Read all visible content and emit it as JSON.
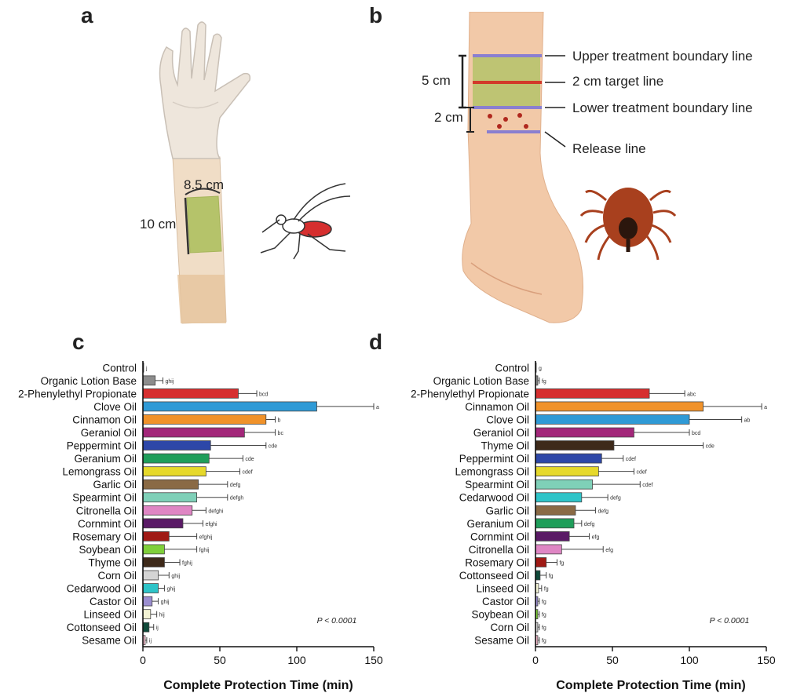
{
  "panels": {
    "a": "a",
    "b": "b",
    "c": "c",
    "d": "d"
  },
  "panel_a": {
    "width_label": "8.5 cm",
    "height_label": "10 cm"
  },
  "panel_b": {
    "upper_line": "Upper treatment boundary line",
    "target_line": "2 cm target line",
    "lower_line": "Lower treatment boundary line",
    "release_line": "Release line",
    "dist_5": "5 cm",
    "dist_2": "2 cm"
  },
  "colors": {
    "treated_area": "#b5c36a",
    "boundary_line": "#8a7fd0",
    "target_line": "#d23a2a",
    "tick": "#8b3a1a"
  },
  "chart_data": [
    {
      "type": "bar",
      "orientation": "horizontal",
      "xlabel": "Complete Protection Time (min)",
      "xlim": [
        0,
        150
      ],
      "xticks": [
        0,
        50,
        100,
        150
      ],
      "annotation": "P < 0.0001",
      "bars": [
        {
          "label": "Control",
          "value": 0.5,
          "err": 0,
          "letters": "j",
          "color": "#222222"
        },
        {
          "label": "Organic Lotion Base",
          "value": 8,
          "err": 5,
          "letters": "ghij",
          "color": "#8c8c8c"
        },
        {
          "label": "2-Phenylethyl Propionate",
          "value": 62,
          "err": 12,
          "letters": "bcd",
          "color": "#d62f2f"
        },
        {
          "label": "Clove Oil",
          "value": 113,
          "err": 37,
          "letters": "a",
          "color": "#2f9ad6"
        },
        {
          "label": "Cinnamon Oil",
          "value": 80,
          "err": 6,
          "letters": "b",
          "color": "#f0922a"
        },
        {
          "label": "Geraniol Oil",
          "value": 66,
          "err": 20,
          "letters": "bc",
          "color": "#a3277a"
        },
        {
          "label": "Peppermint Oil",
          "value": 44,
          "err": 36,
          "letters": "cde",
          "color": "#2d47a8"
        },
        {
          "label": "Geranium Oil",
          "value": 43,
          "err": 22,
          "letters": "cde",
          "color": "#1f9e5a"
        },
        {
          "label": "Lemongrass Oil",
          "value": 41,
          "err": 22,
          "letters": "cdef",
          "color": "#e6d92b"
        },
        {
          "label": "Garlic Oil",
          "value": 36,
          "err": 19,
          "letters": "defg",
          "color": "#8a6a45"
        },
        {
          "label": "Spearmint Oil",
          "value": 35,
          "err": 20,
          "letters": "defgh",
          "color": "#7fd0b8"
        },
        {
          "label": "Citronella Oil",
          "value": 32,
          "err": 9,
          "letters": "defghi",
          "color": "#df86c4"
        },
        {
          "label": "Cornmint Oil",
          "value": 26,
          "err": 13,
          "letters": "efghi",
          "color": "#5a1a66"
        },
        {
          "label": "Rosemary Oil",
          "value": 17,
          "err": 18,
          "letters": "efghij",
          "color": "#a01a15"
        },
        {
          "label": "Soybean Oil",
          "value": 14,
          "err": 21,
          "letters": "fghij",
          "color": "#7fcf3a"
        },
        {
          "label": "Thyme Oil",
          "value": 14,
          "err": 10,
          "letters": "fghij",
          "color": "#3e2a1a"
        },
        {
          "label": "Corn Oil",
          "value": 10,
          "err": 7,
          "letters": "ghij",
          "color": "#d4d4d4"
        },
        {
          "label": "Cedarwood Oil",
          "value": 10,
          "err": 4,
          "letters": "ghij",
          "color": "#2ec4c8"
        },
        {
          "label": "Castor Oil",
          "value": 6,
          "err": 4,
          "letters": "ghij",
          "color": "#9b8ed0"
        },
        {
          "label": "Linseed Oil",
          "value": 5,
          "err": 4,
          "letters": "hij",
          "color": "#f3f3d4"
        },
        {
          "label": "Cottonseed Oil",
          "value": 4,
          "err": 3,
          "letters": "ij",
          "color": "#0f4a3a"
        },
        {
          "label": "Sesame Oil",
          "value": 1.5,
          "err": 1,
          "letters": "ij",
          "color": "#f0b8c8"
        }
      ]
    },
    {
      "type": "bar",
      "orientation": "horizontal",
      "xlabel": "Complete Protection Time (min)",
      "xlim": [
        0,
        150
      ],
      "xticks": [
        0,
        50,
        100,
        150
      ],
      "annotation": "P < 0.0001",
      "bars": [
        {
          "label": "Control",
          "value": 0.5,
          "err": 0,
          "letters": "g",
          "color": "#222222"
        },
        {
          "label": "Organic Lotion Base",
          "value": 1.5,
          "err": 1,
          "letters": "fg",
          "color": "#8c8c8c"
        },
        {
          "label": "2-Phenylethyl Propionate",
          "value": 74,
          "err": 23,
          "letters": "abc",
          "color": "#d62f2f"
        },
        {
          "label": "Cinnamon Oil",
          "value": 109,
          "err": 38,
          "letters": "a",
          "color": "#f0922a"
        },
        {
          "label": "Clove Oil",
          "value": 100,
          "err": 34,
          "letters": "ab",
          "color": "#2f9ad6"
        },
        {
          "label": "Geraniol Oil",
          "value": 64,
          "err": 36,
          "letters": "bcd",
          "color": "#a3277a"
        },
        {
          "label": "Thyme Oil",
          "value": 51,
          "err": 58,
          "letters": "cde",
          "color": "#3e2a1a"
        },
        {
          "label": "Peppermint Oil",
          "value": 43,
          "err": 14,
          "letters": "cdef",
          "color": "#2d47a8"
        },
        {
          "label": "Lemongrass Oil",
          "value": 41,
          "err": 23,
          "letters": "cdef",
          "color": "#e6d92b"
        },
        {
          "label": "Spearmint Oil",
          "value": 37,
          "err": 31,
          "letters": "cdef",
          "color": "#7fd0b8"
        },
        {
          "label": "Cedarwood Oil",
          "value": 30,
          "err": 17,
          "letters": "defg",
          "color": "#2ec4c8"
        },
        {
          "label": "Garlic Oil",
          "value": 26,
          "err": 13,
          "letters": "defg",
          "color": "#8a6a45"
        },
        {
          "label": "Geranium Oil",
          "value": 25,
          "err": 5,
          "letters": "defg",
          "color": "#1f9e5a"
        },
        {
          "label": "Cornmint Oil",
          "value": 22,
          "err": 13,
          "letters": "efg",
          "color": "#5a1a66"
        },
        {
          "label": "Citronella Oil",
          "value": 17,
          "err": 27,
          "letters": "efg",
          "color": "#df86c4"
        },
        {
          "label": "Rosemary Oil",
          "value": 7,
          "err": 7,
          "letters": "fg",
          "color": "#a01a15"
        },
        {
          "label": "Cottonseed Oil",
          "value": 3,
          "err": 4,
          "letters": "fg",
          "color": "#0f4a3a"
        },
        {
          "label": "Linseed Oil",
          "value": 2,
          "err": 2,
          "letters": "fg",
          "color": "#f3f3d4"
        },
        {
          "label": "Castor Oil",
          "value": 1.5,
          "err": 1,
          "letters": "fg",
          "color": "#9b8ed0"
        },
        {
          "label": "Soybean Oil",
          "value": 1.5,
          "err": 1,
          "letters": "fg",
          "color": "#7fcf3a"
        },
        {
          "label": "Corn Oil",
          "value": 1.5,
          "err": 1,
          "letters": "fg",
          "color": "#d4d4d4"
        },
        {
          "label": "Sesame Oil",
          "value": 1.5,
          "err": 1,
          "letters": "fg",
          "color": "#f0b8c8"
        }
      ]
    }
  ]
}
